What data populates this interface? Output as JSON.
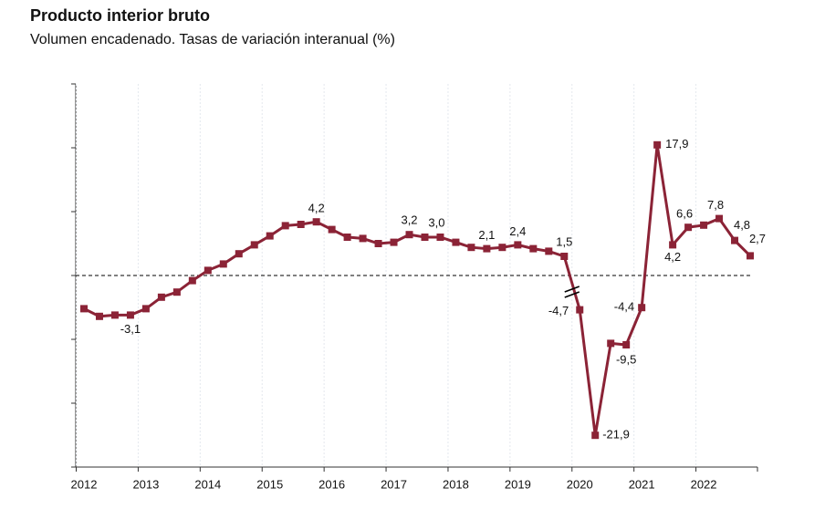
{
  "chart_data": {
    "type": "line",
    "title": "Producto interior bruto",
    "subtitle": "Volumen encadenado. Tasas de variación interanual (%)",
    "categories": [
      "2012",
      null,
      null,
      null,
      "2013",
      null,
      null,
      null,
      "2014",
      null,
      null,
      null,
      "2015",
      null,
      null,
      null,
      "2016",
      null,
      null,
      null,
      "2017",
      null,
      null,
      null,
      "2018",
      null,
      null,
      null,
      "2019",
      null,
      null,
      null,
      "2020",
      null,
      null,
      null,
      "2021",
      null,
      null,
      null,
      "2022",
      null,
      null,
      null
    ],
    "ylim": [
      -15,
      15
    ],
    "yticks": [
      -15,
      -10,
      -5,
      0,
      5,
      10,
      15
    ],
    "y2lim": [
      -26.25,
      26.25
    ],
    "reference_line": 0,
    "series": [
      {
        "color": "#8b2336",
        "axis": "y",
        "values": [
          -2.6,
          -3.2,
          -3.1,
          -3.1,
          -2.6,
          -1.7,
          -1.3,
          -0.4,
          0.4,
          0.9,
          1.7,
          2.4,
          3.1,
          3.9,
          4.0,
          4.2,
          3.6,
          3.0,
          2.9,
          2.5,
          2.6,
          3.2,
          3.0,
          3.0,
          2.6,
          2.2,
          2.1,
          2.2,
          2.4,
          2.1,
          1.9,
          1.5,
          null,
          null,
          null,
          null,
          null,
          null,
          null,
          null,
          null,
          null,
          null,
          null
        ],
        "value_labels": [
          null,
          null,
          null,
          "-3,1",
          null,
          null,
          null,
          null,
          null,
          null,
          null,
          null,
          null,
          null,
          null,
          "4,2",
          null,
          null,
          null,
          null,
          null,
          "3,2",
          null,
          "3,0",
          null,
          null,
          "2,1",
          null,
          "2,4",
          null,
          null,
          "1,5",
          null,
          null,
          null,
          null,
          null,
          null,
          null,
          null,
          null,
          null,
          null,
          null
        ]
      },
      {
        "color": "#8b2336",
        "axis": "y2",
        "values": [
          null,
          null,
          null,
          null,
          null,
          null,
          null,
          null,
          null,
          null,
          null,
          null,
          null,
          null,
          null,
          null,
          null,
          null,
          null,
          null,
          null,
          null,
          null,
          null,
          null,
          null,
          null,
          null,
          null,
          null,
          null,
          null,
          -4.7,
          -21.9,
          -9.3,
          -9.5,
          -4.4,
          17.9,
          4.2,
          6.6,
          6.9,
          7.8,
          4.8,
          2.7
        ],
        "value_labels": [
          null,
          null,
          null,
          null,
          null,
          null,
          null,
          null,
          null,
          null,
          null,
          null,
          null,
          null,
          null,
          null,
          null,
          null,
          null,
          null,
          null,
          null,
          null,
          null,
          null,
          null,
          null,
          null,
          null,
          null,
          null,
          null,
          "-4,7",
          "-21,9",
          null,
          "-9,5",
          "-4,4",
          "17,9",
          "4,2",
          "6,6",
          null,
          "7,8",
          "4,8",
          "2,7"
        ]
      }
    ]
  }
}
